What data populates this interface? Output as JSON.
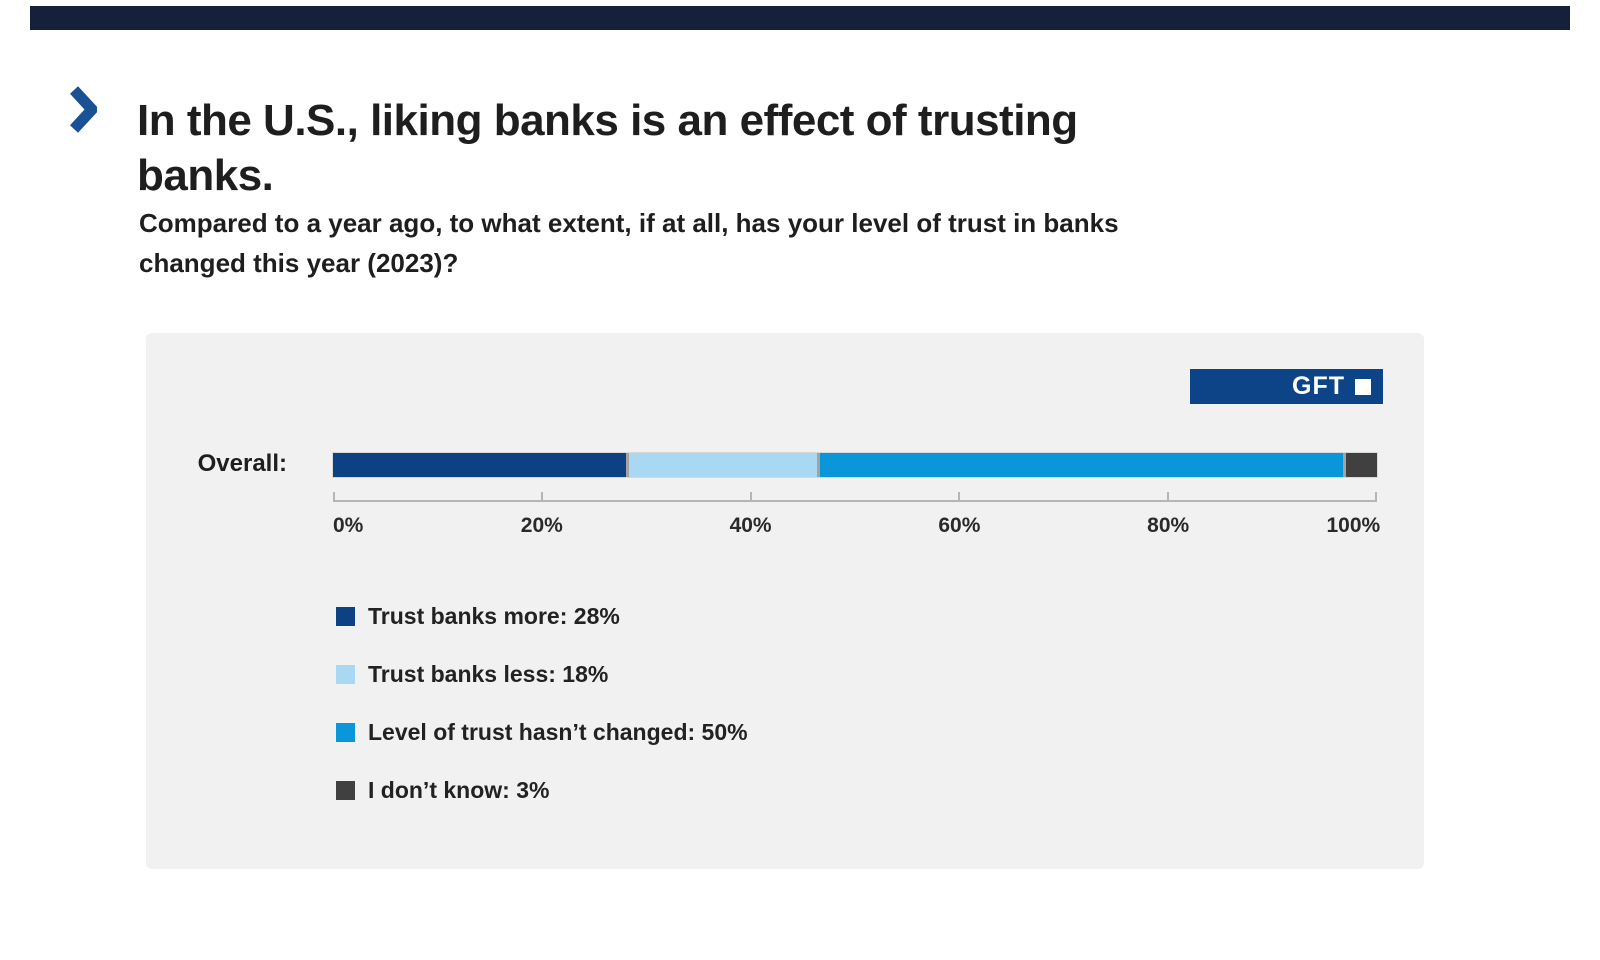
{
  "header": {
    "title_lines": [
      "In the U.S., liking banks is an effect of trusting",
      "banks."
    ],
    "subtitle_lines": [
      "Compared to a year ago, to what extent, if at all, has your level of trust in banks",
      "changed this year (2023)?"
    ]
  },
  "branding": {
    "label": "GFT"
  },
  "colors": {
    "accent_bar": "#15213b",
    "chevron": "#1a5094",
    "badge_bg": "#0d4487",
    "axis": "#b5b5b5"
  },
  "chart_data": {
    "type": "bar",
    "orientation": "horizontal",
    "stacked": true,
    "category_label": "Overall:",
    "categories": [
      "Overall"
    ],
    "series": [
      {
        "name": "Trust banks more",
        "value": 28,
        "color": "#0c4183"
      },
      {
        "name": "Trust banks less",
        "value": 18,
        "color": "#a9d8f2"
      },
      {
        "name": "Level of trust hasn’t changed",
        "value": 50,
        "color": "#0a97d9"
      },
      {
        "name": "I don’t know",
        "value": 3,
        "color": "#404040"
      }
    ],
    "xlim": [
      0,
      100
    ],
    "x_ticks": [
      {
        "value": 0,
        "label": "0%"
      },
      {
        "value": 20,
        "label": "20%"
      },
      {
        "value": 40,
        "label": "40%"
      },
      {
        "value": 60,
        "label": "60%"
      },
      {
        "value": 80,
        "label": "80%"
      },
      {
        "value": 100,
        "label": "100%"
      }
    ],
    "legend_position": "bottom-left",
    "legend_format": "{name}: {value}%"
  }
}
